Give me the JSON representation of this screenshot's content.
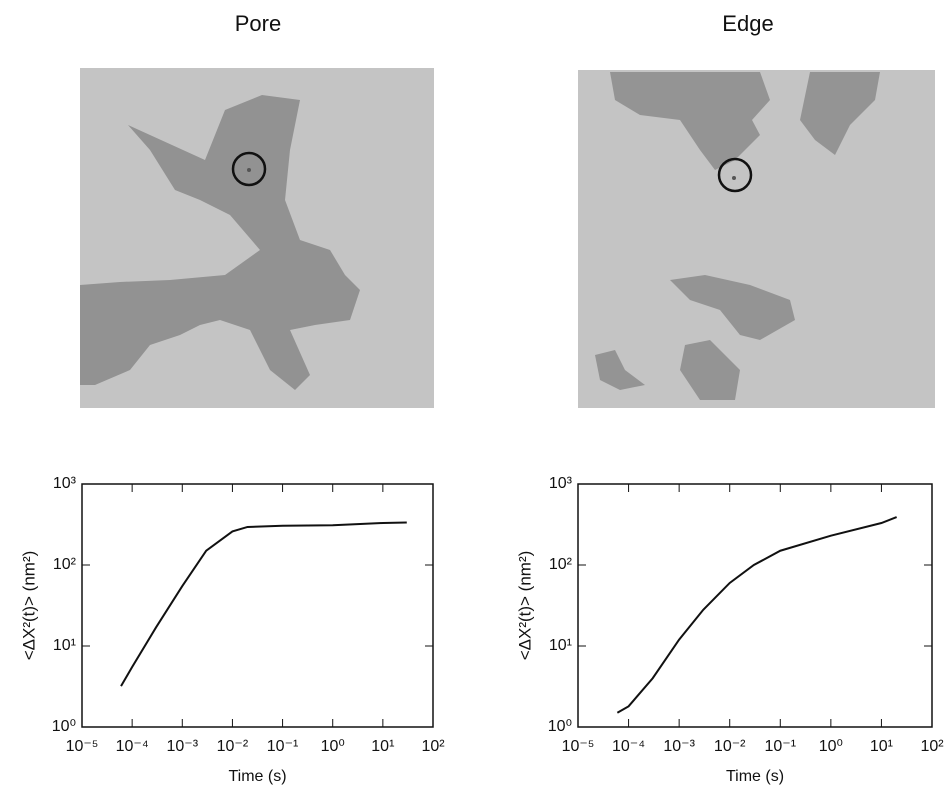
{
  "chart_data": [
    {
      "type": "line",
      "title": "Pore",
      "x_label": "Time (s)",
      "y_label": "<ΔX²(t)> (nm²)",
      "x": [
        6e-05,
        0.0001,
        0.0003,
        0.001,
        0.003,
        0.01,
        0.02,
        0.1,
        1,
        10,
        30
      ],
      "values": [
        3.2,
        5.5,
        17,
        55,
        150,
        260,
        295,
        305,
        310,
        330,
        335
      ],
      "color": "#111111",
      "xlog": true,
      "ylog": true,
      "xlim": [
        1e-05,
        100
      ],
      "ylim": [
        1,
        1000
      ],
      "xticks": [
        {
          "value": 1e-05,
          "label": "10⁻⁵"
        },
        {
          "value": 0.0001,
          "label": "10⁻⁴"
        },
        {
          "value": 0.001,
          "label": "10⁻³"
        },
        {
          "value": 0.01,
          "label": "10⁻²"
        },
        {
          "value": 0.1,
          "label": "10⁻¹"
        },
        {
          "value": 1,
          "label": "10⁰"
        },
        {
          "value": 10,
          "label": "10¹"
        },
        {
          "value": 100,
          "label": "10²"
        }
      ],
      "yticks": [
        {
          "value": 1,
          "label": "10⁰"
        },
        {
          "value": 10,
          "label": "10¹"
        },
        {
          "value": 100,
          "label": "10²"
        },
        {
          "value": 1000,
          "label": "10³"
        }
      ]
    },
    {
      "type": "line",
      "title": "Edge",
      "x_label": "Time (s)",
      "y_label": "<ΔX²(t)> (nm²)",
      "x": [
        6e-05,
        0.0001,
        0.0003,
        0.001,
        0.003,
        0.01,
        0.03,
        0.1,
        1,
        10,
        20
      ],
      "values": [
        1.5,
        1.8,
        4,
        12,
        28,
        60,
        100,
        150,
        230,
        330,
        390
      ],
      "color": "#111111",
      "xlog": true,
      "ylog": true,
      "xlim": [
        1e-05,
        100
      ],
      "ylim": [
        1,
        1000
      ],
      "xticks": [
        {
          "value": 1e-05,
          "label": "10⁻⁵"
        },
        {
          "value": 0.0001,
          "label": "10⁻⁴"
        },
        {
          "value": 0.001,
          "label": "10⁻³"
        },
        {
          "value": 0.01,
          "label": "10⁻²"
        },
        {
          "value": 0.1,
          "label": "10⁻¹"
        },
        {
          "value": 1,
          "label": "10⁰"
        },
        {
          "value": 10,
          "label": "10¹"
        },
        {
          "value": 100,
          "label": "10²"
        }
      ],
      "yticks": [
        {
          "value": 1,
          "label": "10⁰"
        },
        {
          "value": 10,
          "label": "10¹"
        },
        {
          "value": 100,
          "label": "10²"
        },
        {
          "value": 1000,
          "label": "10³"
        }
      ]
    }
  ]
}
